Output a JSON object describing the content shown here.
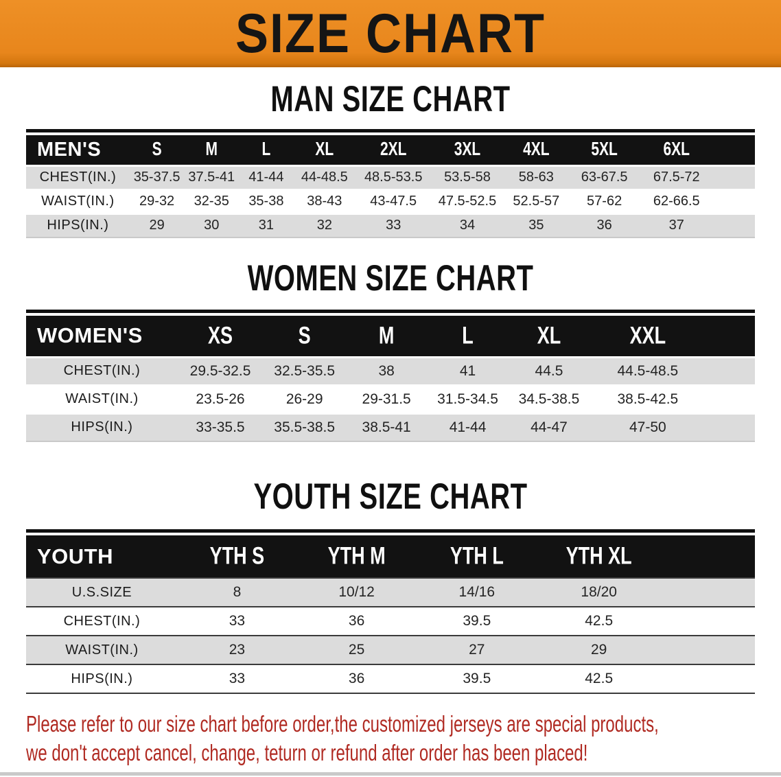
{
  "banner": {
    "title": "SIZE CHART"
  },
  "colors": {
    "banner_orange": "#E8861C",
    "header_black": "#121212",
    "row_gray": "#DCDCDC",
    "disclaimer_red": "#B02A22"
  },
  "sections": {
    "men": {
      "heading": "MAN SIZE CHART",
      "table": {
        "label": "MEN'S",
        "columns": [
          "S",
          "M",
          "L",
          "XL",
          "2XL",
          "3XL",
          "4XL",
          "5XL",
          "6XL"
        ],
        "rows": [
          {
            "label": "CHEST(IN.)",
            "values": [
              "35-37.5",
              "37.5-41",
              "41-44",
              "44-48.5",
              "48.5-53.5",
              "53.5-58",
              "58-63",
              "63-67.5",
              "67.5-72"
            ]
          },
          {
            "label": "WAIST(IN.)",
            "values": [
              "29-32",
              "32-35",
              "35-38",
              "38-43",
              "43-47.5",
              "47.5-52.5",
              "52.5-57",
              "57-62",
              "62-66.5"
            ]
          },
          {
            "label": "HIPS(IN.)",
            "values": [
              "29",
              "30",
              "31",
              "32",
              "33",
              "34",
              "35",
              "36",
              "37"
            ]
          }
        ]
      }
    },
    "women": {
      "heading": "WOMEN SIZE CHART",
      "table": {
        "label": "WOMEN'S",
        "columns": [
          "XS",
          "S",
          "M",
          "L",
          "XL",
          "XXL"
        ],
        "rows": [
          {
            "label": "CHEST(IN.)",
            "values": [
              "29.5-32.5",
              "32.5-35.5",
              "38",
              "41",
              "44.5",
              "44.5-48.5"
            ]
          },
          {
            "label": "WAIST(IN.)",
            "values": [
              "23.5-26",
              "26-29",
              "29-31.5",
              "31.5-34.5",
              "34.5-38.5",
              "38.5-42.5"
            ]
          },
          {
            "label": "HIPS(IN.)",
            "values": [
              "33-35.5",
              "35.5-38.5",
              "38.5-41",
              "41-44",
              "44-47",
              "47-50"
            ]
          }
        ]
      }
    },
    "youth": {
      "heading": "YOUTH SIZE CHART",
      "table": {
        "label": "YOUTH",
        "columns": [
          "YTH S",
          "YTH M",
          "YTH L",
          "YTH XL"
        ],
        "rows": [
          {
            "label": "U.S.SIZE",
            "values": [
              "8",
              "10/12",
              "14/16",
              "18/20"
            ]
          },
          {
            "label": "CHEST(IN.)",
            "values": [
              "33",
              "36",
              "39.5",
              "42.5"
            ]
          },
          {
            "label": "WAIST(IN.)",
            "values": [
              "23",
              "25",
              "27",
              "29"
            ]
          },
          {
            "label": "HIPS(IN.)",
            "values": [
              "33",
              "36",
              "39.5",
              "42.5"
            ]
          }
        ]
      }
    }
  },
  "disclaimer": {
    "line1": "Please refer to our size chart before order,the customized jerseys are special products,",
    "line2": "we don't accept cancel, change, teturn or refund after order has been placed!"
  }
}
